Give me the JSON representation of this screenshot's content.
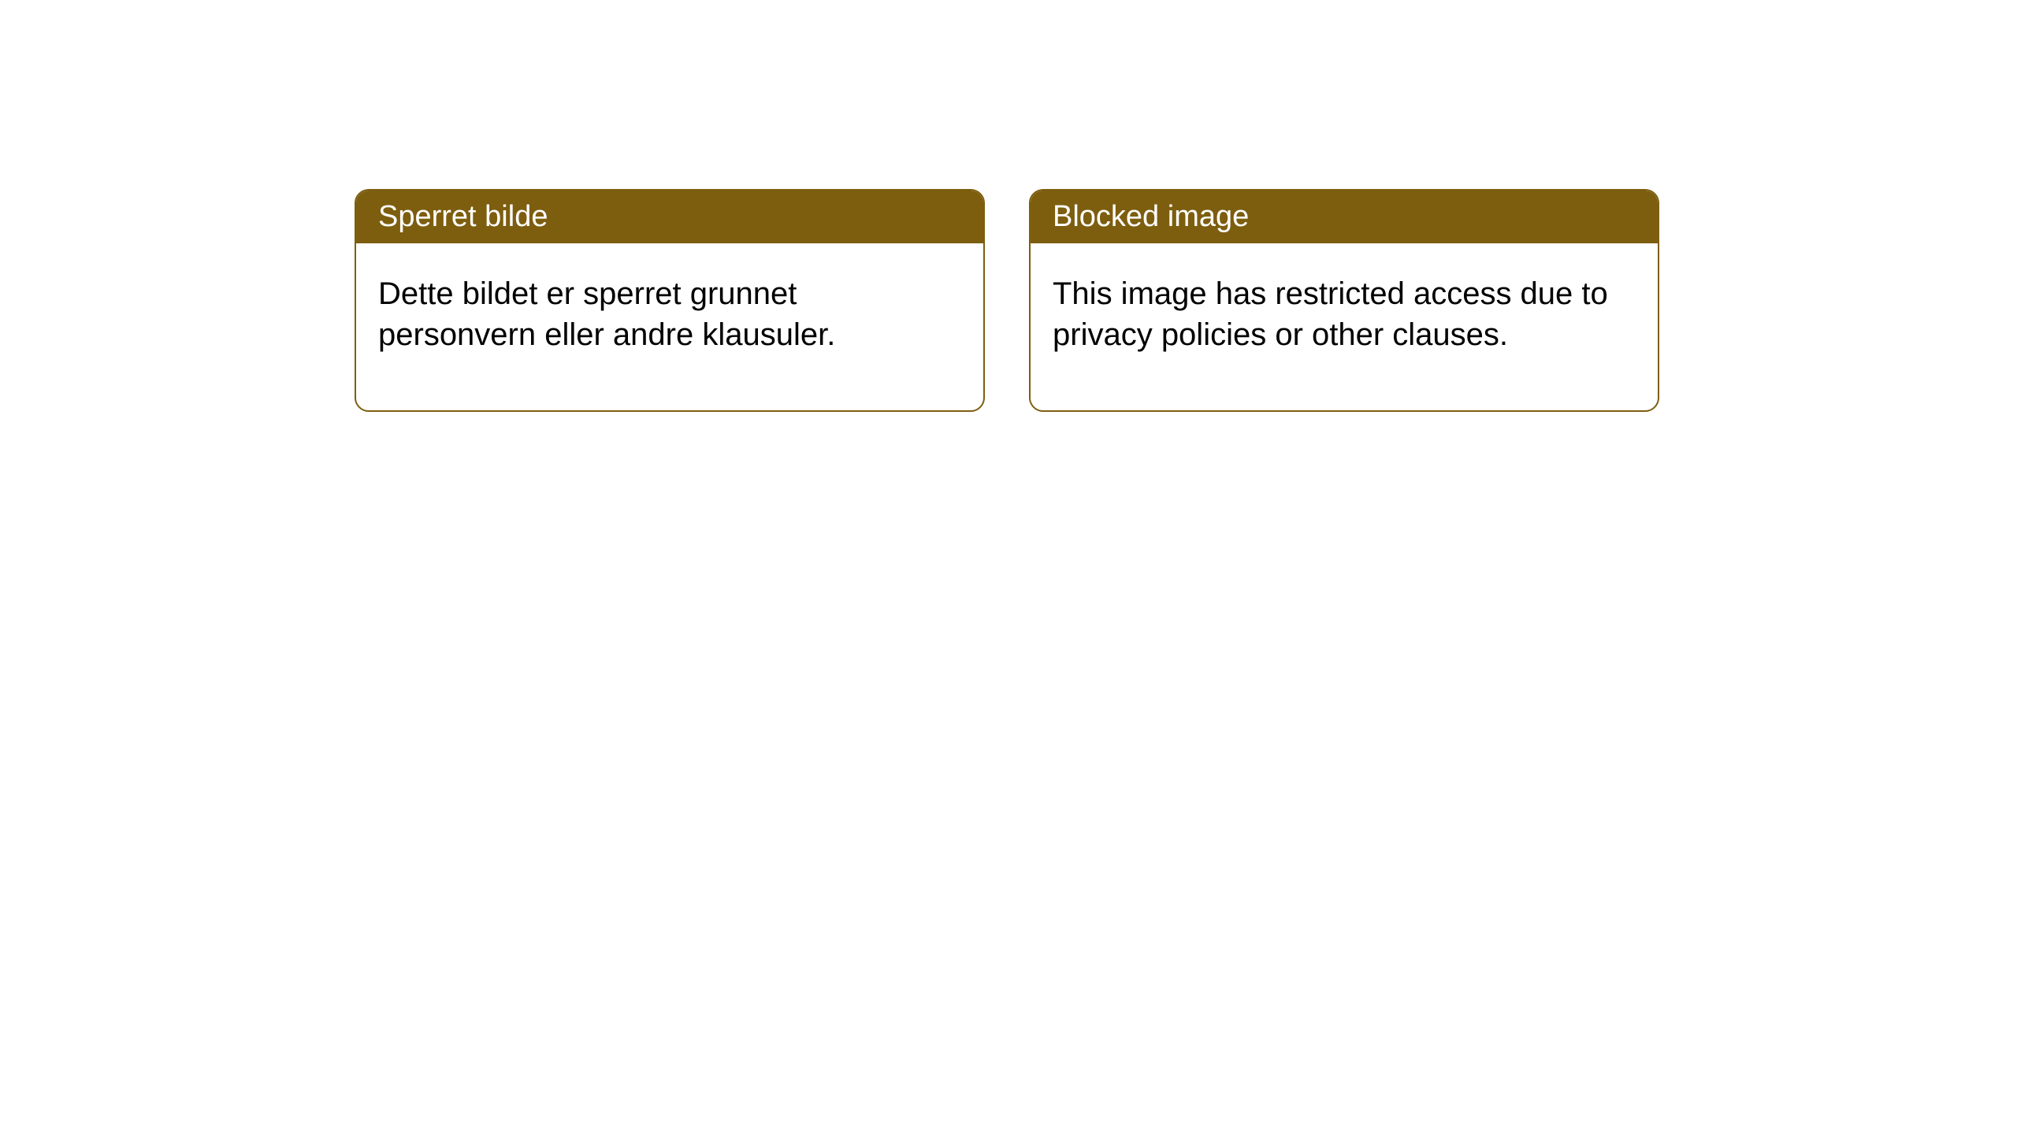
{
  "notices": {
    "left": {
      "title": "Sperret bilde",
      "body": "Dette bildet er sperret grunnet personvern eller andre klausuler."
    },
    "right": {
      "title": "Blocked image",
      "body": "This image has restricted access due to privacy policies or other clauses."
    }
  },
  "style": {
    "header_bg": "#7d5e0f",
    "header_fg": "#ffffff",
    "border_color": "#7d5e0f",
    "body_fg": "#000000",
    "page_bg": "#ffffff",
    "border_radius": 18,
    "title_fontsize": 38,
    "body_fontsize": 40
  }
}
